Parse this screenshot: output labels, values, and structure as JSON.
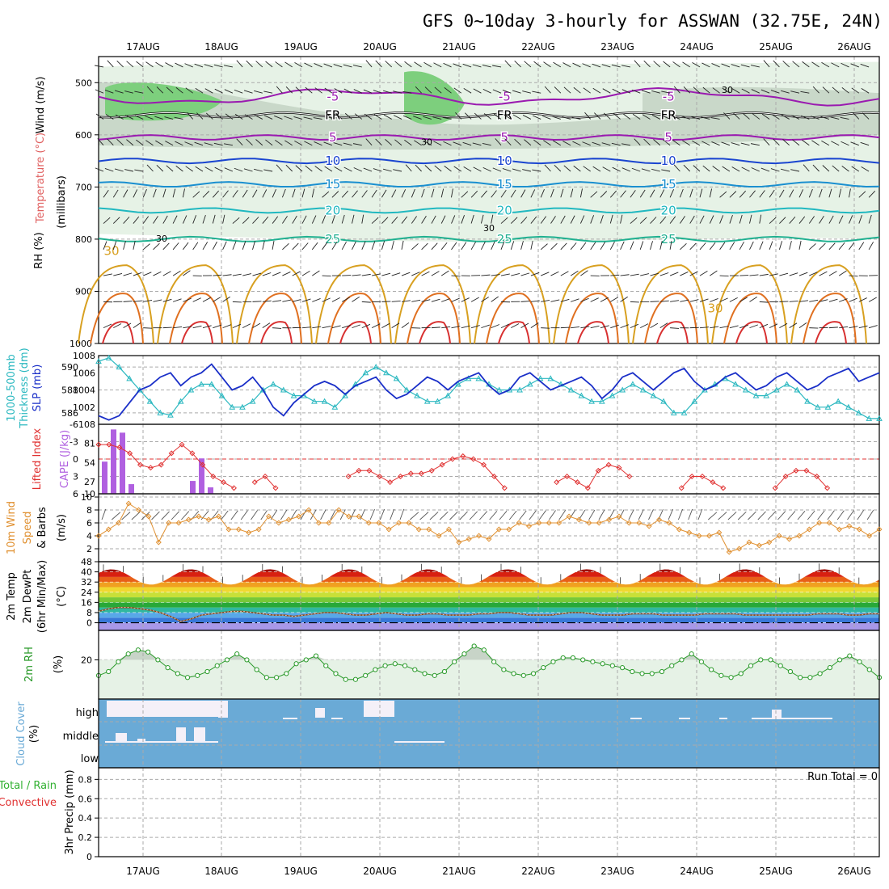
{
  "title": "GFS 0~10day 3-hourly for ASSWAN (32.75E, 24N)",
  "dates": [
    "17AUG",
    "18AUG",
    "19AUG",
    "20AUG",
    "21AUG",
    "22AUG",
    "23AUG",
    "24AUG",
    "25AUG",
    "26AUG"
  ],
  "run_total": "Run Total = 0",
  "panel_labels": {
    "upper_wind": "Wind (m/s)",
    "upper_temp": "Temperature (°C)",
    "upper_rh": "RH (%)",
    "upper_mb": "(millibars)",
    "thk": "1000-500mb",
    "thk2": "Thickness (dm)",
    "slp": "SLP (mb)",
    "li": "Lifted Index",
    "cape": "CAPE (J/kg)",
    "wind10": "10m Wind",
    "wind10b": "Speed",
    "wind10c": "& Barbs",
    "wind10u": "(m/s)",
    "t2": "2m Temp",
    "dp2": "2m DewPt",
    "t2c": "(6hr Min/Max)",
    "t2u": "(°C)",
    "rh2": "2m RH",
    "rh2u": "(%)",
    "cloud": "Cloud Cover",
    "cloudu": "(%)",
    "precip_total": "Total / Rain",
    "precip_conv": "Convective",
    "precip": "3hr Precip (mm)",
    "cloud_high": "high",
    "cloud_mid": "middle",
    "cloud_low": "low"
  },
  "colors": {
    "slp": "#1a2fc8",
    "thickness": "#2bb8c0",
    "li": "#e03030",
    "cape": "#b060e0",
    "wind10": "#e09030",
    "rh": "#2a9a2a",
    "cloud": "#6aaad6",
    "temp_label": "#e06060",
    "precip_conv": "#e03030",
    "precip_total": "#30b030"
  },
  "chart_data": [
    {
      "type": "heatmap",
      "name": "upper-air",
      "yaxis": [
        500,
        600,
        700,
        800,
        900,
        1000
      ],
      "temperature_contours": [
        {
          "label": "-5",
          "color": "#9a1ab0",
          "level_mb": 527
        },
        {
          "label": "FR",
          "color": "#000000",
          "level_mb": 562
        },
        {
          "label": "5",
          "color": "#9a1ab0",
          "level_mb": 605
        },
        {
          "label": "10",
          "color": "#1a45d0",
          "level_mb": 650
        },
        {
          "label": "15",
          "color": "#1a8fd0",
          "level_mb": 695
        },
        {
          "label": "20",
          "color": "#20b8c0",
          "level_mb": 745
        },
        {
          "label": "25",
          "color": "#20b090",
          "level_mb": 800
        },
        {
          "label": "30",
          "color": "#d8a020"
        }
      ],
      "rh_labels": [
        "30"
      ]
    },
    {
      "type": "line",
      "name": "slp-thickness",
      "y_left_ticks": [
        586,
        588,
        590
      ],
      "y_right_ticks": [
        1002,
        1004,
        1006,
        1008
      ],
      "slp": [
        1001,
        1000.5,
        1001,
        1002.5,
        1004,
        1004.5,
        1005.5,
        1006,
        1004.5,
        1005.5,
        1006,
        1007,
        1005.5,
        1004,
        1004.5,
        1005.5,
        1004,
        1002,
        1001,
        1002.5,
        1003.5,
        1004.5,
        1005,
        1004.5,
        1003.5,
        1004.5,
        1005,
        1005.5,
        1004,
        1003,
        1003.5,
        1004.5,
        1005.5,
        1005,
        1004,
        1005,
        1005.5,
        1006,
        1004.5,
        1003.5,
        1004,
        1005.5,
        1006,
        1005,
        1004,
        1004.5,
        1005,
        1005.5,
        1004.5,
        1003,
        1004,
        1005.5,
        1006,
        1005,
        1004,
        1005,
        1006,
        1006.5,
        1005,
        1004,
        1004.5,
        1005.5,
        1006,
        1005,
        1004,
        1004.5,
        1005.5,
        1006,
        1005,
        1004,
        1004.5,
        1005.5,
        1006,
        1006.5,
        1005,
        1005.5,
        1006
      ],
      "thickness": [
        590.5,
        590.8,
        590,
        589,
        588,
        587,
        586,
        585.8,
        587,
        588,
        588.5,
        588.5,
        587.5,
        586.5,
        586.5,
        587,
        588,
        588.5,
        588,
        587.5,
        587.5,
        587,
        587,
        586.5,
        587.5,
        588.5,
        589.5,
        590,
        589.5,
        589,
        588,
        587.5,
        587,
        587,
        587.5,
        588.5,
        589,
        589,
        588.5,
        588,
        588,
        588,
        588.5,
        589,
        589,
        588.5,
        588,
        587.5,
        587,
        587,
        587.5,
        588,
        588.5,
        588,
        587.5,
        587,
        586,
        586,
        587,
        588,
        588.5,
        589,
        588.5,
        588,
        587.5,
        587.5,
        588,
        588.5,
        588,
        587,
        586.5,
        586.5,
        587,
        586.5,
        586,
        585.5,
        585.5
      ]
    },
    {
      "type": "bar",
      "name": "cape-li",
      "y_left_ticks": [
        -6,
        -3,
        0,
        3,
        6
      ],
      "y_right_ticks": [
        10,
        27,
        54,
        81,
        108
      ],
      "cape": [
        50,
        100,
        95,
        15,
        0,
        0,
        0,
        0,
        0,
        0,
        20,
        55,
        10,
        0
      ],
      "lifted_index": [
        -2.5,
        -2.5,
        -2,
        -1,
        1,
        1.5,
        1,
        -1,
        -2.5,
        -1,
        1,
        3,
        4,
        5,
        6,
        4,
        3,
        5,
        6,
        6,
        6,
        6,
        6,
        6,
        3,
        2,
        2,
        3,
        4,
        3,
        2.5,
        2.5,
        2,
        1,
        0,
        -0.5,
        0,
        1,
        3,
        5,
        6,
        6,
        6,
        6,
        4,
        3,
        4,
        5,
        2,
        1,
        1.5,
        3,
        6,
        6,
        6,
        6,
        5,
        3,
        3,
        4,
        5,
        6,
        6,
        6,
        6,
        5,
        3,
        2,
        2,
        3,
        5,
        6,
        6,
        6,
        6,
        6
      ]
    },
    {
      "type": "line",
      "name": "wind10",
      "y_ticks": [
        2,
        4,
        6,
        8,
        10
      ],
      "speed": [
        4,
        5,
        6,
        9,
        8,
        7,
        3,
        6,
        6,
        6.5,
        7,
        6.5,
        7,
        5,
        5,
        4.5,
        5,
        7,
        6,
        6.5,
        7,
        8,
        6,
        6,
        8,
        7,
        7,
        6,
        6,
        5,
        6,
        6,
        5,
        5,
        4,
        5,
        3,
        3.5,
        4,
        3.5,
        5,
        5,
        6,
        5.5,
        6,
        6,
        6,
        7,
        6.5,
        6,
        6,
        6.5,
        7,
        6,
        6,
        5.5,
        6.5,
        6,
        5,
        4.5,
        4,
        4,
        4.5,
        1.5,
        2,
        3,
        2.5,
        3,
        4,
        3.5,
        4,
        5,
        6,
        6,
        5,
        5.5,
        5,
        4,
        5
      ]
    },
    {
      "type": "area",
      "name": "temp-dewpoint",
      "y_ticks": [
        0,
        8,
        16,
        24,
        32,
        40,
        48
      ],
      "temp_max": [
        42,
        42,
        42,
        42,
        42,
        42,
        42,
        42,
        42
      ],
      "temp_min": [
        30,
        30,
        30,
        30,
        30,
        30,
        30,
        30,
        30,
        30
      ],
      "dewpoint": [
        9,
        11,
        12,
        12,
        11,
        10,
        8,
        5,
        1,
        3,
        6,
        7,
        8,
        9,
        9,
        8,
        7,
        6,
        6,
        5,
        6,
        7,
        8,
        8,
        7,
        6,
        6,
        7,
        8,
        7,
        6,
        6,
        7,
        7,
        6,
        6,
        6,
        7,
        7,
        8,
        8,
        7,
        6,
        6,
        6,
        7,
        8,
        8,
        7,
        6,
        6,
        6,
        7,
        7,
        7,
        6,
        6,
        6,
        6,
        7,
        7,
        7,
        7,
        6,
        6,
        6,
        6,
        6,
        6,
        6,
        7,
        7,
        7,
        6,
        6,
        7,
        7
      ]
    },
    {
      "type": "area",
      "name": "rh2m",
      "y_ticks": [
        20
      ],
      "rh": [
        12,
        14,
        19,
        23,
        25,
        24,
        20,
        16,
        13,
        11,
        12,
        14,
        17,
        20,
        23,
        20,
        15,
        11,
        11,
        13,
        18,
        20,
        22,
        17,
        13,
        10,
        10,
        12,
        15,
        17,
        18,
        17,
        15,
        13,
        12,
        14,
        19,
        23,
        27,
        25,
        19,
        15,
        13,
        12,
        13,
        16,
        19,
        21,
        21,
        20,
        19,
        18,
        17,
        16,
        14,
        13,
        13,
        14,
        17,
        20,
        23,
        19,
        15,
        12,
        11,
        13,
        17,
        20,
        20,
        17,
        14,
        11,
        11,
        13,
        16,
        20,
        22,
        19,
        15,
        11
      ]
    },
    {
      "type": "heatmap",
      "name": "cloud-cover",
      "levels": [
        "high",
        "middle",
        "low"
      ]
    },
    {
      "type": "line",
      "name": "precip",
      "y_ticks": [
        0,
        0.2,
        0.4,
        0.6,
        0.8
      ],
      "total": [],
      "convective": []
    }
  ]
}
